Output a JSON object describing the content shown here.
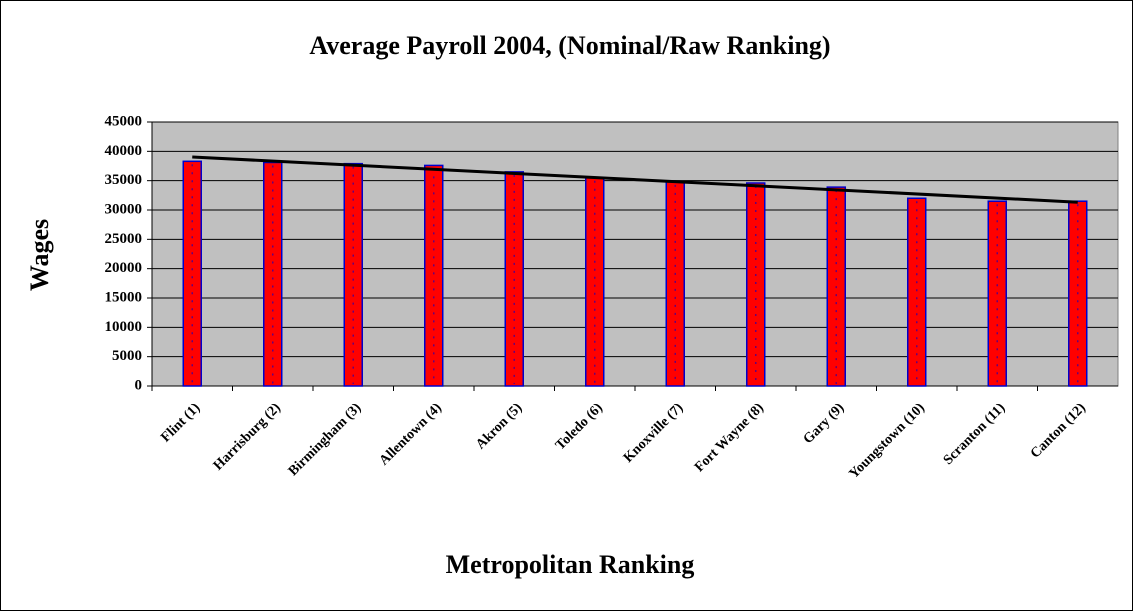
{
  "chart_data": {
    "type": "bar",
    "title": "Average Payroll 2004, (Nominal/Raw Ranking)",
    "x_label": "Metropolitan Ranking",
    "y_label": "Wages",
    "categories": [
      "Flint (1)",
      "Harrisburg (2)",
      "Birmingham (3)",
      "Allentown (4)",
      "Akron (5)",
      "Toledo (6)",
      "Knoxville (7)",
      "Fort Wayne (8)",
      "Gary (9)",
      "Youngstown (10)",
      "Scranton (11)",
      "Canton (12)"
    ],
    "values": [
      38300,
      38100,
      37900,
      37600,
      36500,
      35500,
      34800,
      34600,
      33900,
      32000,
      31500,
      31500
    ],
    "color": "#ff0000",
    "edge_color": "#0000cc",
    "trendline": "linear",
    "trendline_color": "#000000",
    "ylim": [
      0,
      45000
    ],
    "yticks": [
      0,
      5000,
      10000,
      15000,
      20000,
      25000,
      30000,
      35000,
      40000,
      45000
    ],
    "grid": true,
    "plot_background": "#c0c0c0"
  }
}
